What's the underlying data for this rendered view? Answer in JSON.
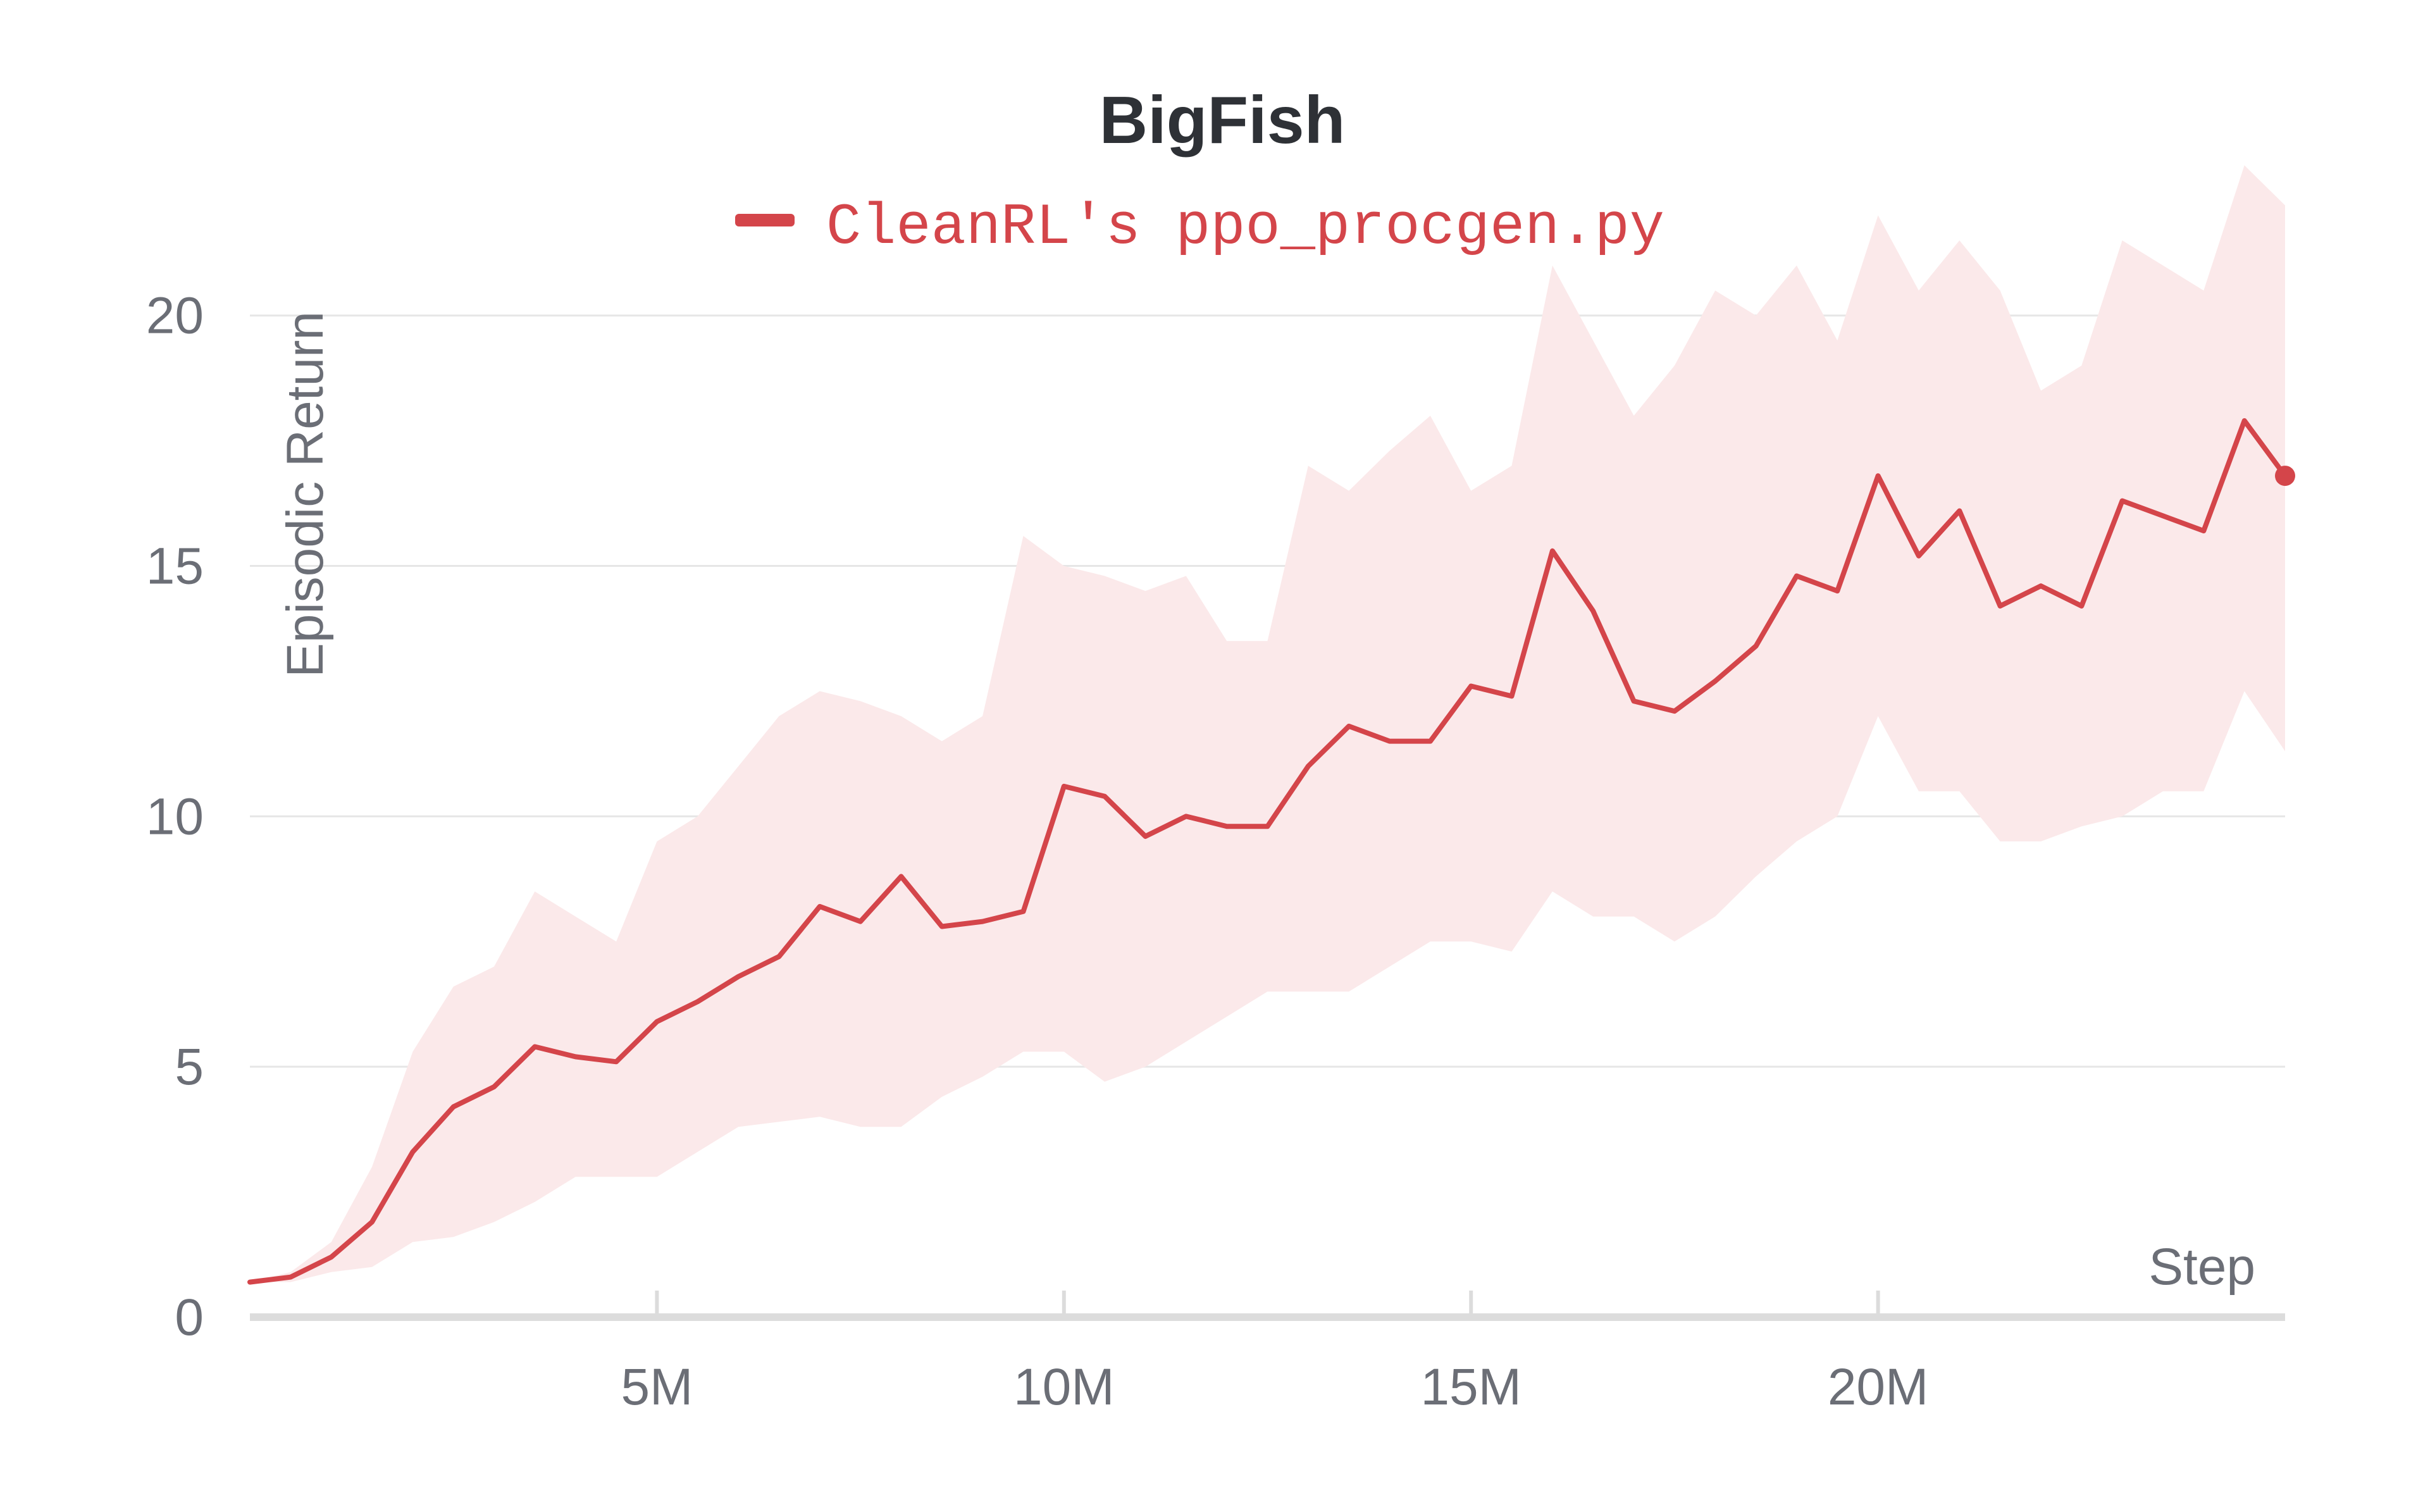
{
  "chart_data": {
    "type": "line",
    "title": "BigFish",
    "xlabel": "Step",
    "ylabel": "Episodic Return",
    "xlim": [
      0,
      25000000
    ],
    "ylim": [
      0,
      21.5
    ],
    "x_ticks": [
      5000000,
      10000000,
      15000000,
      20000000
    ],
    "x_tick_labels": [
      "5M",
      "10M",
      "15M",
      "20M"
    ],
    "y_ticks": [
      0,
      5,
      10,
      15,
      20
    ],
    "y_tick_labels": [
      "0",
      "5",
      "10",
      "15",
      "20"
    ],
    "grid": "horizontal",
    "legend": "top-center",
    "series": [
      {
        "name": "CleanRL's ppo_procgen.py",
        "color": "#d4454a",
        "band_color": "#fbe9ea",
        "x": [
          0,
          500000,
          1000000,
          1500000,
          2000000,
          2500000,
          3000000,
          3500000,
          4000000,
          4500000,
          5000000,
          5500000,
          6000000,
          6500000,
          7000000,
          7500000,
          8000000,
          8500000,
          9000000,
          9500000,
          10000000,
          10500000,
          11000000,
          11500000,
          12000000,
          12500000,
          13000000,
          13500000,
          14000000,
          14500000,
          15000000,
          15500000,
          16000000,
          16500000,
          17000000,
          17500000,
          18000000,
          18500000,
          19000000,
          19500000,
          20000000,
          20500000,
          21000000,
          21500000,
          22000000,
          22500000,
          23000000,
          23500000,
          24000000,
          24500000,
          25000000
        ],
        "mean": [
          0.7,
          0.8,
          1.2,
          1.9,
          3.3,
          4.2,
          4.6,
          5.4,
          5.2,
          5.1,
          5.9,
          6.3,
          6.8,
          7.2,
          8.2,
          7.9,
          8.8,
          7.8,
          7.9,
          8.1,
          10.6,
          10.4,
          9.6,
          10.0,
          9.8,
          9.8,
          11.0,
          11.8,
          11.5,
          11.5,
          12.6,
          12.4,
          15.3,
          14.1,
          12.3,
          12.1,
          12.7,
          13.4,
          14.8,
          14.5,
          16.8,
          15.2,
          16.1,
          14.2,
          14.6,
          14.2,
          16.3,
          16.0,
          15.7,
          17.9,
          16.8
        ],
        "upper": [
          0.7,
          0.9,
          1.5,
          3.0,
          5.3,
          6.6,
          7.0,
          8.5,
          8.0,
          7.5,
          9.5,
          10.0,
          11.0,
          12.0,
          12.5,
          12.3,
          12.0,
          11.5,
          12.0,
          15.6,
          15.0,
          14.8,
          14.5,
          14.8,
          13.5,
          13.5,
          17.0,
          16.5,
          17.3,
          18.0,
          16.5,
          17.0,
          21.0,
          19.5,
          18.0,
          19.0,
          20.5,
          20.0,
          21.0,
          19.5,
          22.0,
          20.5,
          21.5,
          20.5,
          18.5,
          19.0,
          21.5,
          21.0,
          20.5,
          23.0,
          22.2
        ],
        "lower": [
          0.7,
          0.7,
          0.9,
          1.0,
          1.5,
          1.6,
          1.9,
          2.3,
          2.8,
          2.8,
          2.8,
          3.3,
          3.8,
          3.9,
          4.0,
          3.8,
          3.8,
          4.4,
          4.8,
          5.3,
          5.3,
          4.7,
          5.0,
          5.5,
          6.0,
          6.5,
          6.5,
          6.5,
          7.0,
          7.5,
          7.5,
          7.3,
          8.5,
          8.0,
          8.0,
          7.5,
          8.0,
          8.8,
          9.5,
          10.0,
          12.0,
          10.5,
          10.5,
          9.5,
          9.5,
          9.8,
          10.0,
          10.5,
          10.5,
          12.5,
          11.3
        ]
      }
    ]
  }
}
